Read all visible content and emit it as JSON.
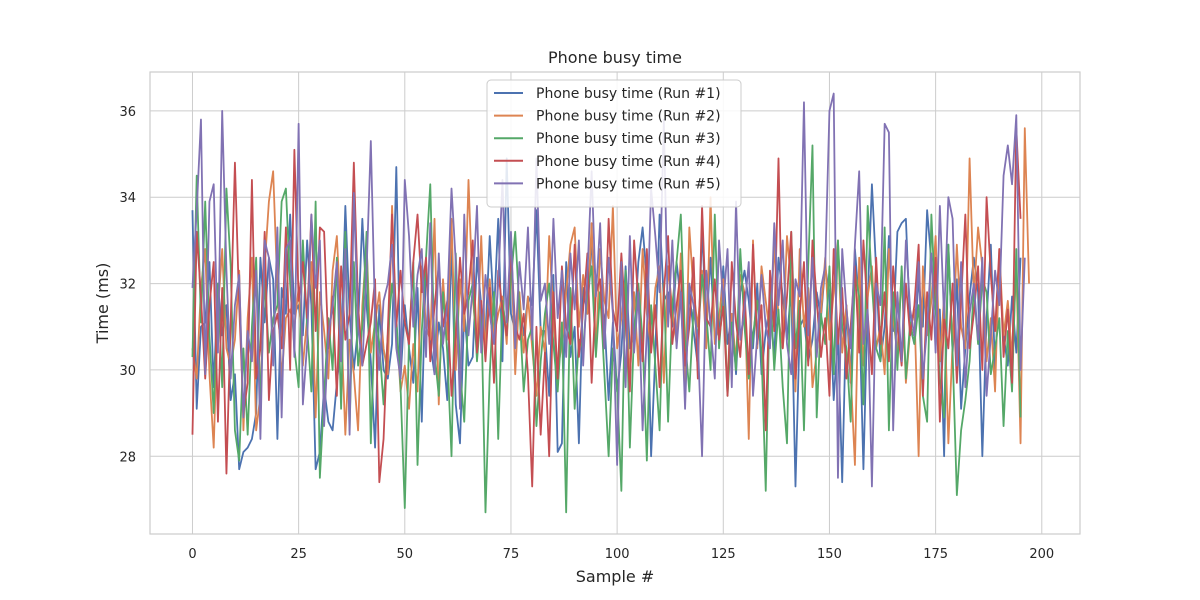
{
  "chart_data": {
    "type": "line",
    "title": "Phone busy time",
    "xlabel": "Sample #",
    "ylabel": "Time (ms)",
    "xlim": [
      -10,
      209
    ],
    "ylim": [
      26.2,
      36.9
    ],
    "xticks": [
      0,
      25,
      50,
      75,
      100,
      125,
      150,
      175,
      200
    ],
    "yticks": [
      28,
      30,
      32,
      34,
      36
    ],
    "grid": true,
    "legend_position": "top-center",
    "series": [
      {
        "name": "Phone busy time (Run #1)",
        "color": "#4c72b0",
        "values": [
          33.7,
          29.1,
          31.0,
          31.1,
          32.5,
          29.6,
          32.0,
          30.8,
          31.5,
          29.3,
          29.9,
          27.7,
          28.1,
          28.2,
          28.4,
          29.0,
          32.6,
          31.1,
          32.6,
          32.1,
          28.4,
          31.9,
          31.3,
          33.6,
          31.3,
          31.5,
          30.8,
          33.0,
          31.5,
          27.7,
          28.1,
          29.6,
          28.8,
          28.6,
          29.7,
          30.6,
          33.8,
          31.3,
          30.0,
          31.0,
          33.5,
          31.5,
          30.2,
          28.2,
          31.5,
          30.0,
          29.8,
          30.6,
          34.7,
          29.8,
          31.5,
          30.5,
          29.7,
          31.9,
          28.8,
          32.5,
          30.6,
          29.9,
          31.1,
          30.5,
          29.3,
          33.0,
          29.2,
          28.3,
          31.4,
          30.1,
          30.3,
          32.6,
          31.5,
          30.8,
          33.1,
          31.3,
          33.5,
          30.2,
          34.9,
          31.3,
          30.9,
          31.5,
          30.8,
          31.7,
          31.5,
          33.7,
          30.9,
          30.9,
          29.4,
          32.2,
          28.1,
          28.3,
          32.5,
          30.3,
          31.0,
          28.3,
          31.9,
          31.3,
          32.9,
          32.1,
          31.6,
          31.2,
          29.3,
          31.1,
          29.5,
          30.4,
          32.4,
          30.5,
          30.8,
          32.5,
          33.3,
          32.1,
          28.0,
          30.4,
          33.6,
          31.6,
          31.8,
          31.0,
          32.5,
          31.6,
          29.8,
          31.8,
          30.9,
          30.1,
          33.3,
          31.0,
          32.6,
          30.7,
          31.0,
          32.4,
          30.6,
          31.3,
          29.9,
          31.8,
          32.3,
          31.6,
          30.5,
          32.0,
          29.9,
          30.9,
          31.5,
          30.3,
          32.6,
          31.7,
          30.7,
          31.9,
          27.3,
          31.0,
          31.2,
          30.2,
          30.7,
          31.8,
          31.2,
          32.4,
          31.7,
          29.3,
          30.8,
          27.4,
          31.5,
          29.7,
          32.8,
          31.5,
          27.7,
          31.6,
          34.3,
          32.3,
          30.2,
          31.0,
          33.1,
          30.9,
          33.2,
          33.4,
          33.5,
          31.0,
          30.6,
          32.1,
          31.0,
          33.7,
          32.5,
          31.4,
          31.4,
          28.0,
          32.9,
          30.4,
          32.1,
          29.1,
          30.5,
          31.7,
          32.6,
          31.8,
          28.0,
          31.2,
          32.9,
          30.0,
          32.3,
          30.8,
          30.1,
          31.7,
          30.4,
          32.6
        ]
      },
      {
        "name": "Phone busy time (Run #2)",
        "color": "#dd8452",
        "values": [
          30.5,
          29.8,
          31.9,
          32.8,
          29.9,
          28.2,
          31.4,
          32.8,
          30.5,
          30.1,
          30.7,
          32.3,
          28.6,
          31.2,
          32.6,
          28.6,
          29.4,
          32.4,
          33.9,
          34.6,
          31.9,
          29.8,
          31.2,
          31.4,
          31.0,
          31.9,
          30.1,
          31.2,
          32.5,
          28.9,
          31.8,
          30.9,
          29.8,
          32.3,
          33.1,
          31.1,
          28.5,
          30.7,
          29.9,
          28.6,
          31.5,
          32.9,
          30.4,
          31.1,
          31.8,
          30.5,
          29.9,
          33.8,
          31.1,
          29.5,
          30.1,
          29.1,
          30.6,
          29.5,
          32.4,
          31.0,
          30.7,
          33.5,
          29.2,
          32.1,
          30.7,
          33.5,
          30.0,
          32.1,
          30.9,
          34.4,
          31.7,
          30.5,
          33.1,
          30.4,
          32.1,
          30.8,
          31.3,
          31.7,
          30.6,
          32.9,
          29.9,
          31.8,
          30.4,
          31.7,
          30.5,
          29.4,
          31.0,
          30.4,
          33.1,
          31.2,
          30.0,
          30.6,
          31.8,
          32.9,
          33.3,
          31.0,
          32.2,
          31.3,
          33.4,
          30.4,
          32.8,
          31.6,
          31.2,
          33.8,
          30.5,
          31.2,
          32.1,
          29.8,
          31.8,
          30.1,
          32.8,
          31.3,
          30.5,
          31.9,
          32.4,
          29.7,
          32.4,
          31.4,
          30.6,
          32.7,
          29.4,
          33.3,
          31.8,
          31.0,
          32.3,
          30.5,
          34.0,
          30.6,
          31.2,
          32.1,
          29.5,
          31.3,
          30.2,
          32.2,
          31.8,
          28.4,
          33.0,
          30.5,
          32.4,
          31.6,
          30.8,
          32.9,
          31.2,
          30.5,
          33.1,
          32.0,
          29.5,
          32.8,
          31.0,
          31.9,
          29.6,
          30.4,
          31.3,
          32.6,
          30.7,
          31.8,
          33.0,
          30.4,
          31.5,
          29.9,
          27.8,
          32.6,
          30.1,
          31.7,
          32.4,
          30.5,
          31.0,
          29.9,
          32.8,
          31.2,
          30.4,
          32.3,
          29.7,
          30.9,
          31.4,
          28.0,
          32.4,
          30.8,
          31.6,
          33.1,
          30.2,
          31.7,
          28.3,
          30.6,
          32.9,
          31.0,
          30.5,
          34.9,
          31.7,
          33.3,
          32.4,
          30.2,
          31.2,
          29.5,
          32.8,
          30.8,
          31.6,
          30.3,
          32.4,
          28.3,
          35.6,
          32.0
        ]
      },
      {
        "name": "Phone busy time (Run #3)",
        "color": "#55a868",
        "values": [
          30.3,
          34.5,
          31.1,
          33.9,
          30.8,
          29.0,
          32.0,
          29.6,
          34.2,
          32.4,
          28.6,
          27.9,
          30.5,
          28.5,
          31.0,
          32.6,
          29.2,
          32.1,
          30.4,
          31.2,
          31.5,
          33.9,
          34.2,
          32.0,
          30.5,
          29.6,
          33.0,
          31.0,
          29.5,
          33.9,
          27.5,
          29.4,
          31.2,
          30.0,
          32.6,
          29.1,
          33.2,
          28.6,
          32.5,
          30.1,
          31.0,
          33.2,
          28.3,
          31.5,
          30.6,
          29.2,
          30.8,
          32.0,
          31.2,
          29.6,
          26.8,
          30.7,
          32.5,
          27.8,
          30.9,
          32.6,
          34.3,
          30.4,
          29.4,
          31.8,
          30.4,
          28.0,
          32.7,
          30.0,
          28.8,
          31.6,
          32.0,
          30.2,
          31.5,
          26.7,
          29.9,
          31.8,
          28.4,
          31.6,
          30.8,
          32.1,
          33.2,
          31.4,
          29.5,
          30.7,
          31.0,
          28.7,
          30.2,
          31.3,
          32.0,
          30.6,
          29.5,
          31.1,
          26.7,
          31.9,
          29.1,
          30.7,
          30.5,
          31.8,
          32.4,
          30.3,
          31.8,
          29.9,
          28.0,
          30.5,
          29.6,
          27.2,
          32.3,
          28.2,
          30.9,
          32.0,
          30.7,
          27.9,
          31.5,
          30.1,
          28.6,
          32.0,
          28.8,
          31.5,
          32.5,
          33.6,
          30.7,
          29.5,
          31.4,
          30.7,
          32.2,
          31.3,
          30.0,
          33.6,
          30.5,
          31.8,
          29.4,
          31.1,
          30.0,
          32.8,
          31.0,
          29.8,
          30.8,
          31.6,
          30.4,
          27.2,
          32.0,
          30.0,
          31.4,
          29.6,
          28.3,
          33.2,
          30.5,
          31.6,
          28.6,
          32.4,
          35.2,
          28.9,
          31.3,
          30.6,
          32.4,
          29.9,
          33.0,
          31.0,
          30.5,
          28.8,
          32.3,
          31.7,
          29.2,
          33.8,
          32.0,
          30.5,
          30.2,
          33.3,
          28.6,
          31.8,
          30.0,
          32.4,
          29.8,
          31.1,
          30.6,
          31.5,
          29.4,
          28.8,
          33.6,
          31.4,
          29.8,
          28.9,
          32.9,
          30.4,
          27.1,
          28.6,
          29.3,
          30.2,
          31.9,
          30.6,
          32.1,
          31.8,
          29.9,
          30.5,
          31.2,
          28.7,
          30.9,
          29.5,
          32.8,
          28.9
        ]
      },
      {
        "name": "Phone busy time (Run #4)",
        "color": "#c44e52",
        "values": [
          28.5,
          33.2,
          31.7,
          29.8,
          31.5,
          32.5,
          28.8,
          31.9,
          27.6,
          31.1,
          34.8,
          31.5,
          29.0,
          29.7,
          34.4,
          29.8,
          30.5,
          33.2,
          29.3,
          30.9,
          31.3,
          30.5,
          33.3,
          30.0,
          35.1,
          31.6,
          32.5,
          31.2,
          33.6,
          30.9,
          33.3,
          33.2,
          30.5,
          31.7,
          29.4,
          32.4,
          30.7,
          31.3,
          34.8,
          31.5,
          30.1,
          30.6,
          31.1,
          32.1,
          27.4,
          28.4,
          30.9,
          33.6,
          31.0,
          32.3,
          31.1,
          30.6,
          32.5,
          33.6,
          31.8,
          32.6,
          30.2,
          31.5,
          32.4,
          31.0,
          31.6,
          29.4,
          30.8,
          32.6,
          31.3,
          31.8,
          33.0,
          30.4,
          31.6,
          30.2,
          31.9,
          29.7,
          32.3,
          31.4,
          30.8,
          32.8,
          31.0,
          30.7,
          31.3,
          29.9,
          27.3,
          31.0,
          28.5,
          30.4,
          28.0,
          31.8,
          29.8,
          32.4,
          31.0,
          30.6,
          32.9,
          30.3,
          31.4,
          32.7,
          29.7,
          31.8,
          32.1,
          30.5,
          33.5,
          31.4,
          30.9,
          32.7,
          31.1,
          29.5,
          33.0,
          31.6,
          30.2,
          32.8,
          30.4,
          31.5,
          29.6,
          31.8,
          33.1,
          30.6,
          31.5,
          32.3,
          30.1,
          31.0,
          32.6,
          29.8,
          33.8,
          31.2,
          31.0,
          32.1,
          30.7,
          31.5,
          29.4,
          32.5,
          31.1,
          30.3,
          31.8,
          29.9,
          32.9,
          30.6,
          31.5,
          28.6,
          32.3,
          30.9,
          34.9,
          30.5,
          31.7,
          33.2,
          29.8,
          31.3,
          32.5,
          30.1,
          33.0,
          31.6,
          30.3,
          31.2,
          29.4,
          32.8,
          30.6,
          31.9,
          29.8,
          31.0,
          32.4,
          30.4,
          33.0,
          31.3,
          29.9,
          32.6,
          30.6,
          31.8,
          30.2,
          32.4,
          31.0,
          30.1,
          32.0,
          30.8,
          31.5,
          32.9,
          29.4,
          31.8,
          30.7,
          32.6,
          28.8,
          31.2,
          30.5,
          32.0,
          29.7,
          31.6,
          33.6,
          30.5,
          31.3,
          32.4,
          30.0,
          34.0,
          32.2,
          30.9,
          32.8,
          30.3,
          31.4,
          29.7,
          35.6,
          33.5
        ]
      },
      {
        "name": "Phone busy time (Run #5)",
        "color": "#8172b3",
        "values": [
          31.9,
          33.7,
          35.8,
          29.9,
          33.9,
          34.3,
          30.4,
          36.0,
          32.3,
          29.8,
          31.5,
          32.2,
          28.9,
          30.9,
          30.2,
          32.3,
          28.4,
          33.0,
          32.6,
          30.1,
          33.3,
          28.9,
          32.8,
          33.0,
          30.3,
          35.7,
          29.2,
          30.6,
          33.6,
          31.9,
          33.0,
          28.7,
          30.8,
          31.5,
          32.5,
          30.2,
          32.8,
          28.5,
          34.1,
          31.0,
          30.1,
          32.3,
          35.3,
          31.2,
          30.0,
          31.6,
          32.0,
          32.9,
          30.5,
          29.8,
          34.4,
          33.1,
          31.0,
          32.2,
          32.8,
          30.3,
          33.4,
          29.9,
          32.7,
          30.6,
          31.5,
          34.2,
          32.5,
          29.1,
          33.6,
          30.8,
          31.9,
          33.8,
          30.4,
          32.2,
          31.3,
          30.6,
          32.0,
          34.4,
          31.1,
          33.2,
          30.5,
          32.5,
          31.4,
          33.3,
          30.7,
          34.9,
          31.6,
          32.0,
          30.6,
          33.5,
          31.2,
          32.3,
          30.3,
          32.7,
          31.4,
          33.0,
          30.1,
          32.2,
          34.6,
          31.7,
          33.4,
          30.5,
          32.6,
          31.3,
          27.8,
          32.5,
          29.6,
          33.1,
          30.4,
          31.8,
          28.6,
          30.9,
          34.2,
          33.1,
          31.8,
          35.8,
          31.0,
          33.0,
          30.5,
          31.8,
          29.1,
          32.0,
          31.5,
          30.7,
          28.0,
          32.3,
          31.0,
          29.8,
          33.0,
          31.5,
          32.8,
          29.6,
          33.9,
          30.7,
          31.4,
          32.5,
          29.4,
          30.8,
          32.2,
          31.0,
          30.5,
          33.4,
          31.5,
          33.0,
          30.6,
          29.9,
          32.1,
          31.7,
          36.2,
          30.8,
          32.6,
          30.3,
          31.9,
          32.4,
          36.0,
          36.4,
          27.5,
          32.8,
          31.4,
          30.5,
          32.9,
          34.6,
          30.6,
          31.4,
          27.3,
          32.0,
          31.5,
          35.7,
          35.5,
          28.6,
          31.8,
          30.2,
          33.0,
          31.4,
          30.8,
          32.5,
          29.8,
          31.0,
          32.7,
          30.4,
          33.8,
          31.2,
          34.0,
          33.5,
          30.1,
          32.5,
          29.6,
          31.3,
          32.0,
          30.7,
          32.6,
          29.4,
          30.8,
          32.3,
          31.5,
          34.5,
          35.2,
          34.3,
          35.9,
          30.0,
          32.6
        ]
      }
    ]
  }
}
